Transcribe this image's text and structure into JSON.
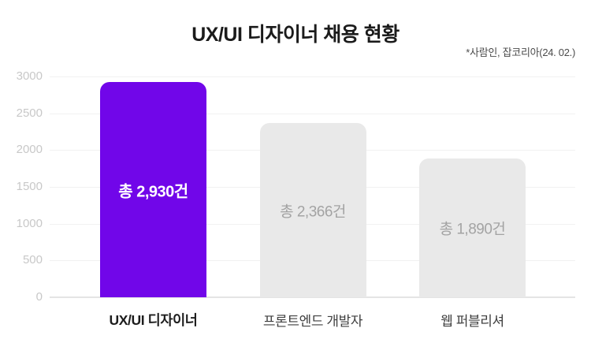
{
  "header": {
    "title": "UX/UI 디자이너 채용 현황",
    "source_note": "*사람인, 잡코리아(24. 02.)"
  },
  "chart_data": {
    "type": "bar",
    "title": "UX/UI 디자이너 채용 현황",
    "source": "*사람인, 잡코리아(24. 02.)",
    "categories": [
      "UX/UI 디자이너",
      "프론트엔드 개발자",
      "웹 퍼블리셔"
    ],
    "values": [
      2930,
      2366,
      1890
    ],
    "bar_labels": [
      "총 2,930건",
      "총 2,366건",
      "총 1,890건"
    ],
    "highlight_index": 0,
    "xlabel": "",
    "ylabel": "",
    "ylim": [
      0,
      3000
    ],
    "yticks": [
      0,
      500,
      1000,
      1500,
      2000,
      2500,
      3000
    ],
    "grid": true,
    "legend": "none",
    "colors": {
      "highlight_bar": "#7106E9",
      "default_bar": "#E9E9E9",
      "highlight_label": "#FFFFFF",
      "default_label": "#A3A3A3",
      "tick_text": "#C8C8C8",
      "gridline": "#F1F1F1",
      "axis_line": "#E4E4E4",
      "title_text": "#1B1B1B",
      "source_text": "#4B4B4B",
      "xlabel_highlight": "#1D1D1D",
      "xlabel_default": "#3F3F3F"
    }
  }
}
